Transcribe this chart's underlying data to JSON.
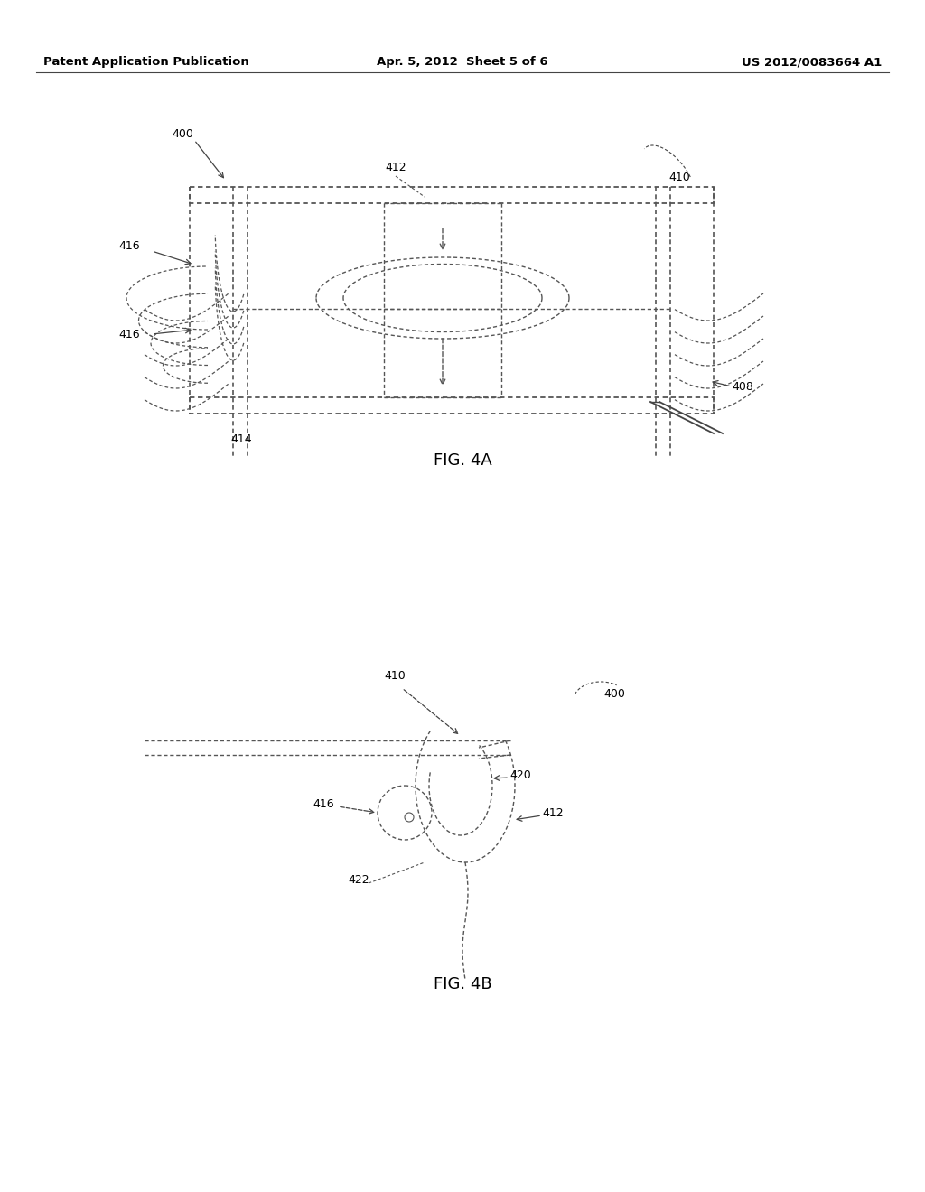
{
  "bg_color": "#ffffff",
  "lc": "#444444",
  "dc": "#555555",
  "tc": "#000000",
  "header_left": "Patent Application Publication",
  "header_center": "Apr. 5, 2012  Sheet 5 of 6",
  "header_right": "US 2012/0083664 A1",
  "fig4a_label": "FIG. 4A",
  "fig4b_label": "FIG. 4B"
}
